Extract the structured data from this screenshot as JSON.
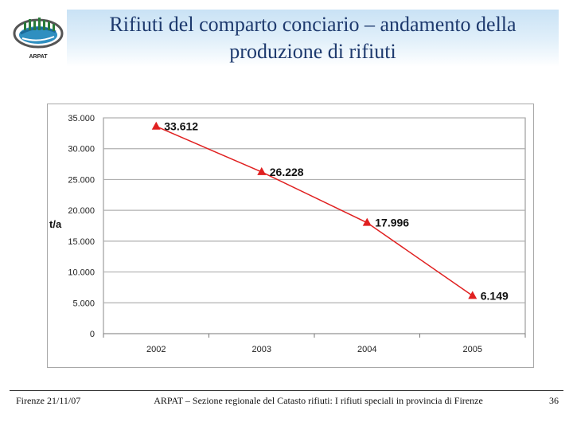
{
  "header": {
    "title_line1": "Rifiuti del comparto conciario – andamento della",
    "title_line2": "produzione di rifiuti",
    "logo_text": "ARPAT"
  },
  "chart_data": {
    "type": "line",
    "x": [
      "2002",
      "2003",
      "2004",
      "2005"
    ],
    "series": [
      {
        "values": [
          33612,
          26228,
          17996,
          6149
        ],
        "color": "#e02020",
        "marker": "triangle"
      }
    ],
    "data_labels": [
      "33.612",
      "26.228",
      "17.996",
      "6.149"
    ],
    "ylabel": "t/a",
    "xlabel": "",
    "ylim": [
      0,
      35000
    ],
    "yticks": [
      {
        "value": 0,
        "label": "0"
      },
      {
        "value": 5000,
        "label": "5.000"
      },
      {
        "value": 10000,
        "label": "10.000"
      },
      {
        "value": 15000,
        "label": "15.000"
      },
      {
        "value": 20000,
        "label": "20.000"
      },
      {
        "value": 25000,
        "label": "25.000"
      },
      {
        "value": 30000,
        "label": "30.000"
      },
      {
        "value": 35000,
        "label": "35.000"
      }
    ],
    "grid": true,
    "legend": "none",
    "plot_background": "#ffffff",
    "grid_color": "#b0b0b0"
  },
  "footer": {
    "date": "Firenze 21/11/07",
    "source": "ARPAT – Sezione regionale del Catasto rifiuti: I rifiuti speciali in provincia di Firenze",
    "page_number": "36"
  }
}
